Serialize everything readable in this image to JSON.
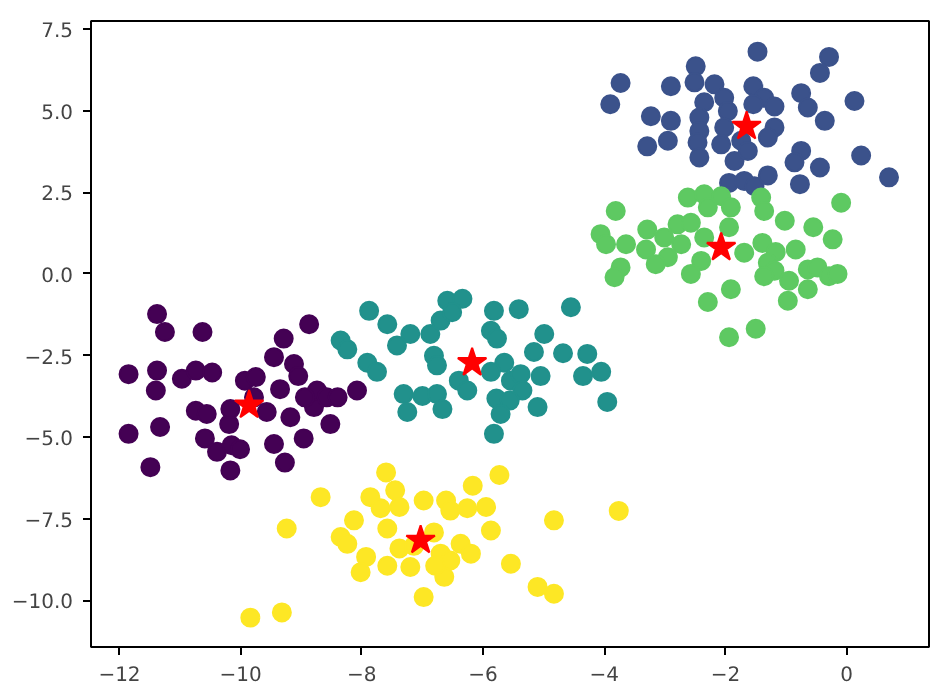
{
  "chart_data": {
    "type": "scatter",
    "xlim": [
      -12.47,
      1.36
    ],
    "ylim": [
      -11.43,
      7.75
    ],
    "xticks": [
      {
        "value": -12,
        "label": "−12"
      },
      {
        "value": -10,
        "label": "−10"
      },
      {
        "value": -8,
        "label": "−8"
      },
      {
        "value": -6,
        "label": "−6"
      },
      {
        "value": -4,
        "label": "−4"
      },
      {
        "value": -2,
        "label": "−2"
      },
      {
        "value": 0,
        "label": "0"
      }
    ],
    "yticks": [
      {
        "value": -10,
        "label": "−10.0"
      },
      {
        "value": -7.5,
        "label": "−7.5"
      },
      {
        "value": -5,
        "label": "−5.0"
      },
      {
        "value": -2.5,
        "label": "−2.5"
      },
      {
        "value": 0,
        "label": "0.0"
      },
      {
        "value": 2.5,
        "label": "2.5"
      },
      {
        "value": 5,
        "label": "5.0"
      },
      {
        "value": 7.5,
        "label": "7.5"
      }
    ],
    "grid": false,
    "marker": "circle",
    "series": [
      {
        "color": "#3b528b",
        "x": [
          -1.47,
          -0.29,
          -0.44,
          -2.49,
          -3.73,
          -3.9,
          -2.9,
          -2.51,
          -2.18,
          -1.54,
          -0.75,
          0.13,
          -2.35,
          -2.02,
          -1.36,
          -1.19,
          -0.64,
          -3.23,
          -2.9,
          -2.43,
          -1.96,
          -1.54,
          -0.36,
          -2.43,
          -2.02,
          -1.19,
          -2.95,
          -3.29,
          -2.46,
          -2.07,
          -1.74,
          -1.3,
          -0.75,
          0.24,
          -2.43,
          -1.85,
          -1.63,
          -0.86,
          -0.44,
          0.7,
          -1.94,
          -1.69,
          -1.52,
          -1.3,
          -0.77
        ],
        "values": [
          6.81,
          6.65,
          6.16,
          6.36,
          5.85,
          5.2,
          5.75,
          5.87,
          5.81,
          5.75,
          5.54,
          5.3,
          5.26,
          5.4,
          5.4,
          5.13,
          5.1,
          4.83,
          4.69,
          4.79,
          4.99,
          5.2,
          4.69,
          4.38,
          4.49,
          4.49,
          4.08,
          3.91,
          4.03,
          3.97,
          4.08,
          4.18,
          3.77,
          3.63,
          3.57,
          3.46,
          3.77,
          3.42,
          3.26,
          2.96,
          2.79,
          2.85,
          2.69,
          3.02,
          2.75
        ]
      },
      {
        "color": "#5ec962",
        "x": [
          -3.81,
          -4.06,
          -3.97,
          -3.64,
          -3.29,
          -3.01,
          -2.79,
          -2.57,
          -2.62,
          -2.35,
          -2.07,
          -2.29,
          -1.91,
          -1.41,
          -1.36,
          -1.02,
          -0.55,
          -0.09,
          -1.94,
          -2.35,
          -2.73,
          -3.01,
          -3.31,
          -2.95,
          -3.15,
          -3.73,
          -3.83,
          -2.4,
          -2.57,
          -1.69,
          -1.39,
          -1.17,
          -0.84,
          -0.23,
          -1.3,
          -1.19,
          -1.36,
          -0.95,
          -0.64,
          -0.48,
          -0.29,
          -0.15,
          -0.64,
          -1.91,
          -2.29,
          -0.97,
          -1.94,
          -1.5
        ],
        "values": [
          1.93,
          1.22,
          0.91,
          0.91,
          1.36,
          null,
          1.52,
          1.57,
          2.34,
          2.44,
          2.38,
          2.04,
          2.04,
          2.34,
          1.93,
          1.63,
          1.43,
          2.18,
          1.43,
          1.12,
          0.91,
          1.12,
          0.75,
          0.51,
          0.3,
          0.2,
          -0.1,
          0.4,
          0.0,
          0.65,
          0.95,
          0.67,
          0.75,
          1.06,
          0.34,
          0.1,
          -0.07,
          -0.21,
          0.14,
          0.2,
          -0.07,
          0.0,
          -0.47,
          -0.47,
          -0.86,
          -0.82,
          -1.94,
          -1.68
        ]
      },
      {
        "color": "#21918c",
        "x": [
          -7.88,
          -7.58,
          -8.35,
          -8.24,
          -7.91,
          -7.75,
          -7.42,
          -7.2,
          -6.87,
          -6.7,
          -6.59,
          -6.34,
          -6.51,
          -6.81,
          -6.76,
          -7.31,
          -7.25,
          -7.0,
          -6.76,
          -6.67,
          -6.4,
          -6.26,
          -5.82,
          -5.41,
          -5.87,
          -5.77,
          -5.65,
          -5.87,
          -5.54,
          -5.38,
          -5.35,
          -5.78,
          -5.56,
          -5.71,
          -5.82,
          -5.1,
          -5.16,
          -4.99,
          -5.05,
          -4.68,
          -4.55,
          -4.28,
          -4.35,
          -4.05,
          -3.95
        ],
        "values": [
          -1.13,
          -1.54,
          -2.04,
          -2.31,
          -2.72,
          -3.0,
          -2.19,
          -1.84,
          -1.84,
          -1.43,
          -0.82,
          -0.76,
          -1.17,
          -2.51,
          -2.8,
          -3.68,
          -4.23,
          -3.74,
          -3.68,
          -4.14,
          -3.27,
          -3.57,
          -1.13,
          -1.08,
          -1.74,
          -1.98,
          -2.72,
          -3.0,
          -3.27,
          -3.07,
          -3.57,
          -3.82,
          -3.88,
          -4.29,
          -4.9,
          -4.08,
          -2.39,
          -1.84,
          -3.13,
          -2.43,
          -1.02,
          -2.45,
          -3.13,
          -3.0,
          -3.92
        ]
      },
      {
        "color": "#440154",
        "x": [
          -11.38,
          -11.25,
          -10.63,
          -11.85,
          -11.38,
          -11.4,
          -10.97,
          -10.74,
          -10.47,
          -11.85,
          -11.33,
          -11.49,
          -10.74,
          -10.56,
          -10.59,
          -10.39,
          -10.19,
          -10.17,
          -10.15,
          -10.01,
          -10.17,
          -9.93,
          -9.75,
          -9.78,
          -9.45,
          -9.29,
          -9.12,
          -9.05,
          -9.35,
          -9.57,
          -9.45,
          -9.27,
          -9.18,
          -8.96,
          -8.87,
          -8.79,
          -8.74,
          -8.58,
          -8.52,
          -8.94,
          -8.08,
          -8.4
        ],
        "values": [
          -1.23,
          -1.78,
          -1.78,
          -3.07,
          -2.96,
          -3.57,
          -3.21,
          -2.96,
          -3.02,
          -4.9,
          -4.69,
          -5.92,
          -4.19,
          -4.29,
          -5.04,
          -5.45,
          -4.6,
          -4.14,
          -5.25,
          -5.37,
          -6.02,
          -3.27,
          -3.16,
          -3.78,
          -2.55,
          -1.98,
          -2.76,
          -3.13,
          -3.53,
          -4.23,
          -5.21,
          -5.78,
          -4.39,
          -5.04,
          -1.54,
          -4.08,
          -3.57,
          -3.78,
          -4.6,
          -3.78,
          -3.57,
          -3.78
        ]
      },
      {
        "color": "#fde725",
        "x": [
          -7.6,
          -5.73,
          -8.68,
          -7.86,
          -7.45,
          -7.38,
          -7.69,
          -6.98,
          -6.61,
          -6.54,
          -6.26,
          -6.17,
          -5.95,
          -9.24,
          -8.13,
          -7.58,
          -8.35,
          -8.24,
          -7.93,
          -8.02,
          -7.58,
          -7.38,
          -7.14,
          -7.2,
          -6.81,
          -6.7,
          -6.54,
          -6.37,
          -6.2,
          -6.64,
          -6.79,
          -6.98,
          -5.87,
          -5.54,
          -5.1,
          -4.83,
          -4.83,
          -3.76,
          -9.84,
          -9.32
        ],
        "values": [
          -6.08,
          -6.16,
          -6.84,
          -6.84,
          -6.63,
          -7.14,
          -7.18,
          -6.94,
          -6.94,
          -7.25,
          -7.18,
          -6.49,
          -7.14,
          -7.8,
          -7.55,
          -7.8,
          -8.06,
          -8.27,
          -8.67,
          -9.14,
          -8.94,
          -8.41,
          -8.33,
          -8.98,
          -7.92,
          -8.57,
          -8.78,
          -8.27,
          -8.57,
          -9.28,
          -8.94,
          -9.9,
          -7.86,
          -8.88,
          -9.59,
          -9.8,
          -7.55,
          -7.26,
          -10.53,
          -10.37
        ]
      },
      {
        "color": "#ff0000",
        "marker": "star",
        "x": [
          -1.65,
          -2.07,
          -6.18,
          -9.86,
          -7.03
        ],
        "values": [
          4.52,
          0.81,
          -2.72,
          -4.02,
          -8.16
        ]
      }
    ]
  }
}
